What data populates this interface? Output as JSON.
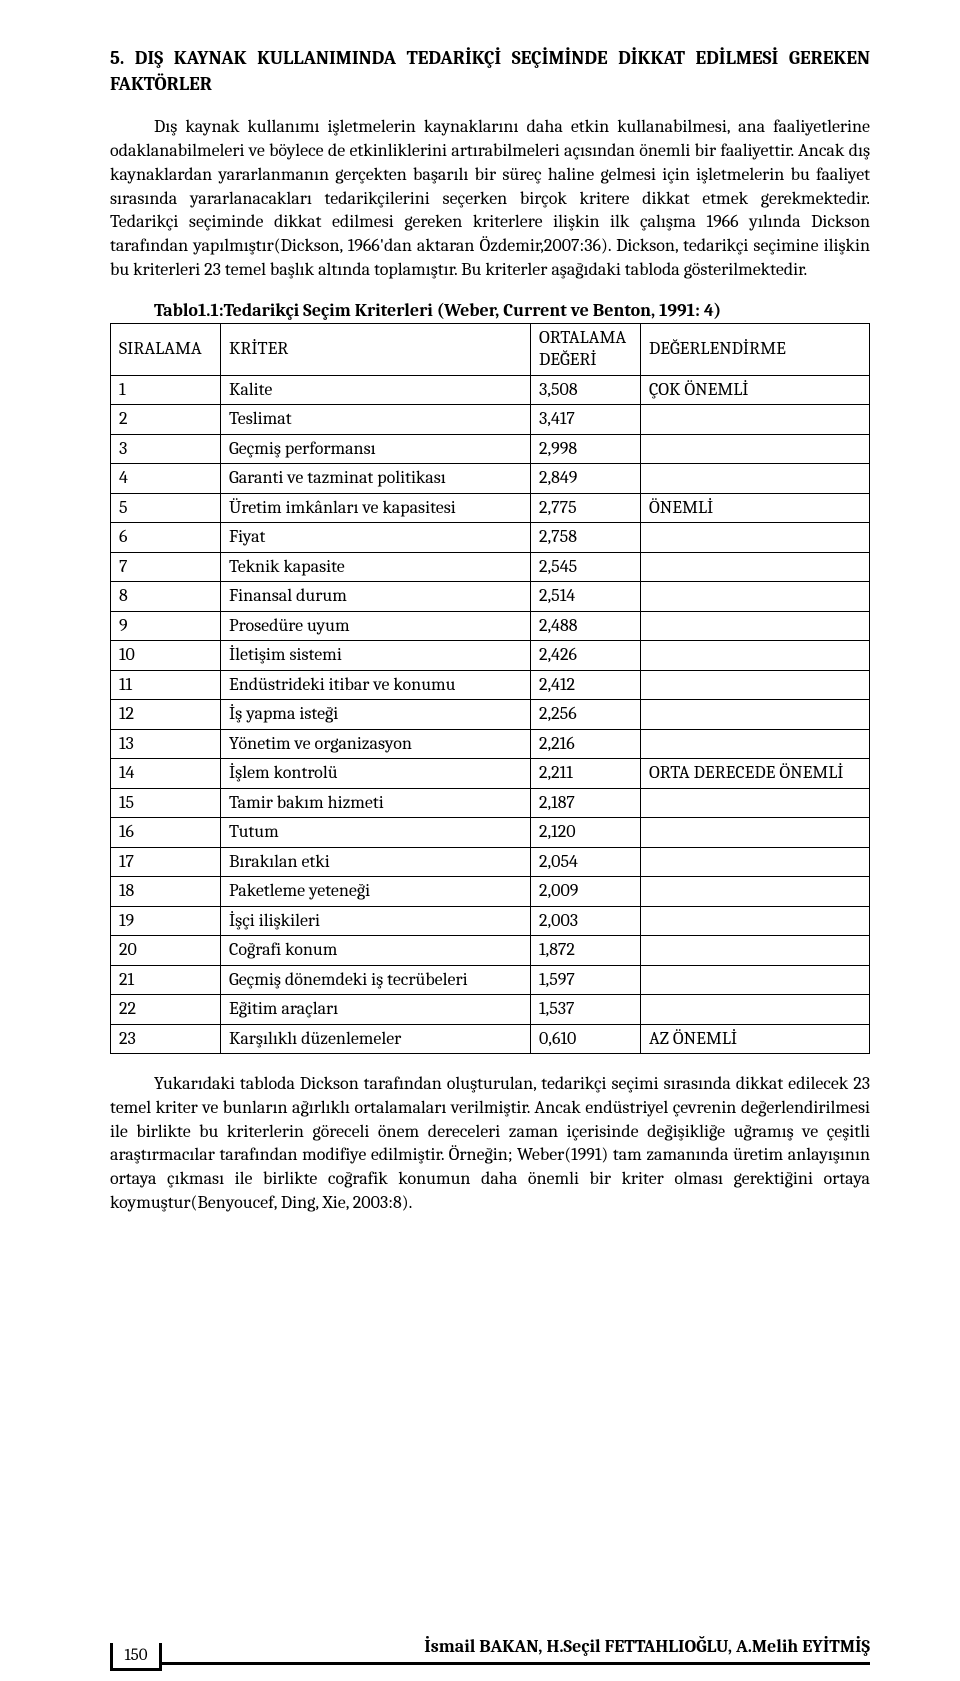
{
  "heading": "5. DIŞ KAYNAK KULLANIMINDA TEDARİKÇİ SEÇİMİNDE DİKKAT EDİLMESİ GEREKEN FAKTÖRLER",
  "paragraph1": "Dış kaynak kullanımı işletmelerin kaynaklarını daha etkin kullanabilmesi, ana faaliyetlerine odaklanabilmeleri ve böylece de etkinliklerini artırabilmeleri açısından önemli bir faaliyettir. Ancak dış kaynaklardan yararlanmanın gerçekten başarılı bir süreç haline gelmesi için işletmelerin bu faaliyet sırasında yararlanacakları tedarikçilerini seçerken birçok kritere dikkat etmek gerekmektedir. Tedarikçi seçiminde dikkat edilmesi gereken kriterlere ilişkin ilk çalışma 1966 yılında Dickson tarafından yapılmıştır(Dickson, 1966'dan aktaran Özdemir,2007:36). Dickson, tedarikçi seçimine ilişkin bu kriterleri 23 temel başlık altında toplamıştır. Bu kriterler aşağıdaki tabloda gösterilmektedir.",
  "table": {
    "title": "Tablo1.1:Tedarikçi Seçim Kriterleri (Weber, Current ve Benton, 1991: 4)",
    "headers": {
      "rank": "SIRALAMA",
      "criterion": "KRİTER",
      "avg": "ORTALAMA DEĞERİ",
      "evaluation": "DEĞERLENDİRME"
    },
    "rows": [
      {
        "rank": "1",
        "criterion": "Kalite",
        "avg": "3,508",
        "eval": "ÇOK ÖNEMLİ"
      },
      {
        "rank": "2",
        "criterion": "Teslimat",
        "avg": "3,417",
        "eval": ""
      },
      {
        "rank": "3",
        "criterion": "Geçmiş performansı",
        "avg": "2,998",
        "eval": ""
      },
      {
        "rank": "4",
        "criterion": "Garanti ve tazminat politikası",
        "avg": "2,849",
        "eval": ""
      },
      {
        "rank": "5",
        "criterion": "Üretim imkânları ve kapasitesi",
        "avg": "2,775",
        "eval": "ÖNEMLİ"
      },
      {
        "rank": "6",
        "criterion": "Fiyat",
        "avg": "2,758",
        "eval": ""
      },
      {
        "rank": "7",
        "criterion": "Teknik kapasite",
        "avg": "2,545",
        "eval": ""
      },
      {
        "rank": "8",
        "criterion": "Finansal durum",
        "avg": "2,514",
        "eval": ""
      },
      {
        "rank": "9",
        "criterion": "Prosedüre uyum",
        "avg": "2,488",
        "eval": ""
      },
      {
        "rank": "10",
        "criterion": "İletişim sistemi",
        "avg": "2,426",
        "eval": ""
      },
      {
        "rank": "11",
        "criterion": "Endüstrideki itibar ve konumu",
        "avg": "2,412",
        "eval": ""
      },
      {
        "rank": "12",
        "criterion": "İş yapma isteği",
        "avg": "2,256",
        "eval": ""
      },
      {
        "rank": "13",
        "criterion": "Yönetim ve organizasyon",
        "avg": "2,216",
        "eval": ""
      },
      {
        "rank": "14",
        "criterion": "İşlem kontrolü",
        "avg": "2,211",
        "eval": "ORTA DERECEDE ÖNEMLİ"
      },
      {
        "rank": "15",
        "criterion": "Tamir bakım hizmeti",
        "avg": "2,187",
        "eval": ""
      },
      {
        "rank": "16",
        "criterion": "Tutum",
        "avg": "2,120",
        "eval": ""
      },
      {
        "rank": "17",
        "criterion": "Bırakılan etki",
        "avg": "2,054",
        "eval": ""
      },
      {
        "rank": "18",
        "criterion": "Paketleme yeteneği",
        "avg": "2,009",
        "eval": ""
      },
      {
        "rank": "19",
        "criterion": "İşçi ilişkileri",
        "avg": "2,003",
        "eval": ""
      },
      {
        "rank": "20",
        "criterion": "Coğrafi konum",
        "avg": "1,872",
        "eval": ""
      },
      {
        "rank": "21",
        "criterion": "Geçmiş dönemdeki iş tecrübeleri",
        "avg": "1,597",
        "eval": ""
      },
      {
        "rank": "22",
        "criterion": "Eğitim araçları",
        "avg": "1,537",
        "eval": ""
      },
      {
        "rank": "23",
        "criterion": "Karşılıklı düzenlemeler",
        "avg": "0,610",
        "eval": "AZ ÖNEMLİ"
      }
    ]
  },
  "paragraph2": "Yukarıdaki tabloda Dickson tarafından oluşturulan, tedarikçi seçimi sırasında dikkat edilecek 23 temel kriter ve bunların ağırlıklı ortalamaları verilmiştir. Ancak endüstriyel çevrenin değerlendirilmesi ile birlikte bu kriterlerin göreceli önem dereceleri zaman içerisinde değişikliğe uğramış ve çeşitli araştırmacılar tarafından  modifiye edilmiştir. Örneğin; Weber(1991) tam zamanında üretim anlayışının ortaya çıkması ile birlikte coğrafik konumun daha önemli bir kriter olması gerektiğini ortaya koymuştur(Benyoucef, Ding, Xie, 2003:8).",
  "footer": {
    "authors": "İsmail BAKAN, H.Seçil FETTAHLIOĞLU, A.Melih EYİTMİŞ",
    "pageNumber": "150"
  }
}
